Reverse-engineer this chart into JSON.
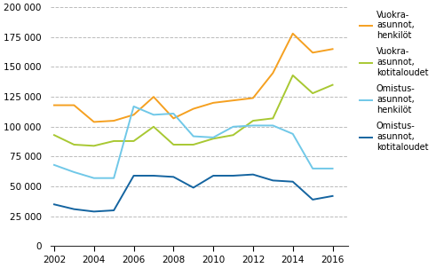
{
  "years": [
    2002,
    2003,
    2004,
    2005,
    2006,
    2007,
    2008,
    2009,
    2010,
    2011,
    2012,
    2013,
    2014,
    2015,
    2016
  ],
  "vuokra_henkilot": [
    118000,
    118000,
    104000,
    105000,
    110000,
    125000,
    107000,
    115000,
    120000,
    122000,
    124000,
    145000,
    178000,
    162000,
    165000
  ],
  "vuokra_kotitaloudet": [
    93000,
    85000,
    84000,
    88000,
    88000,
    100000,
    85000,
    85000,
    90000,
    93000,
    105000,
    107000,
    143000,
    128000,
    135000
  ],
  "omistus_henkilot": [
    68000,
    62000,
    57000,
    57000,
    117000,
    110000,
    111000,
    92000,
    91000,
    100000,
    101000,
    101000,
    94000,
    65000,
    65000
  ],
  "omistus_kotitaloudet": [
    35000,
    31000,
    29000,
    30000,
    59000,
    59000,
    58000,
    49000,
    59000,
    59000,
    60000,
    55000,
    54000,
    39000,
    42000
  ],
  "color_vuokra_henkilot": "#F5A020",
  "color_vuokra_kotitaloudet": "#A8C832",
  "color_omistus_henkilot": "#70C8E8",
  "color_omistus_kotitaloudet": "#1464A0",
  "ylim": [
    0,
    200000
  ],
  "yticks": [
    0,
    25000,
    50000,
    75000,
    100000,
    125000,
    150000,
    175000,
    200000
  ],
  "xticks": [
    2002,
    2004,
    2006,
    2008,
    2010,
    2012,
    2014,
    2016
  ],
  "legend_labels": [
    "Vuokra-\nasunnot,\nhenkilöt",
    "Vuokra-\nasunnot,\nkotitaloudet",
    "Omistus-\nasunnot,\nhenkilöt",
    "Omistus-\nasunnot,\nkotitaloudet"
  ],
  "linewidth": 1.4,
  "figsize": [
    4.91,
    3.02
  ],
  "dpi": 100
}
